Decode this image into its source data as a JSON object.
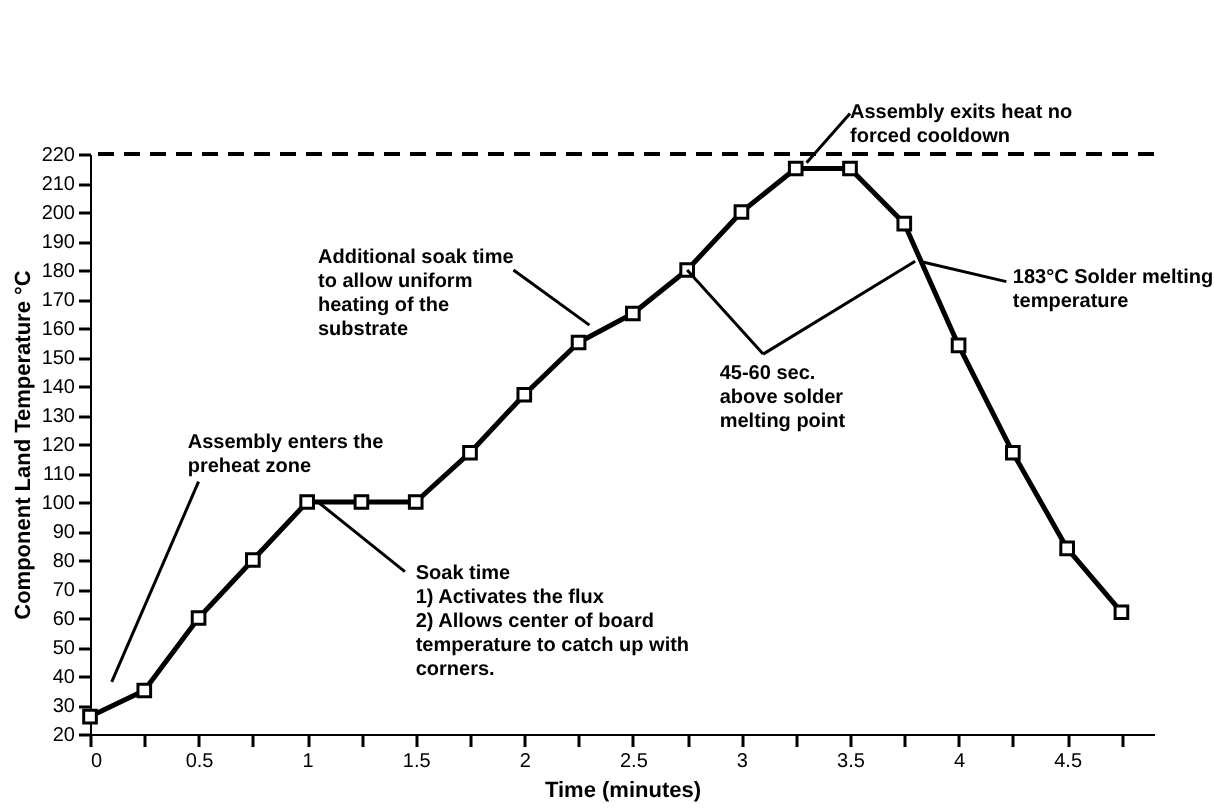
{
  "chart_data": {
    "type": "line",
    "xlabel": "Time (minutes)",
    "ylabel": "Component Land Temperature °C",
    "x": [
      0,
      0.25,
      0.5,
      0.75,
      1,
      1.25,
      1.5,
      1.75,
      2,
      2.25,
      2.5,
      2.75,
      3,
      3.25,
      3.5,
      3.75,
      4,
      4.25,
      4.5,
      4.75
    ],
    "series": [
      {
        "color": "#000000",
        "values": [
          26,
          35,
          60,
          80,
          100,
          100,
          100,
          117,
          137,
          155,
          165,
          180,
          200,
          215,
          215,
          196,
          154,
          117,
          84,
          62
        ]
      }
    ],
    "xlim": [
      0,
      4.9
    ],
    "ylim": [
      20,
      220
    ],
    "xticks": [
      0,
      {
        "value": 0.25,
        "label": null
      },
      0.5,
      {
        "value": 0.75,
        "label": null
      },
      1,
      {
        "value": 1.25,
        "label": null
      },
      1.5,
      {
        "value": 1.75,
        "label": null
      },
      2,
      {
        "value": 2.25,
        "label": null
      },
      2.5,
      {
        "value": 2.75,
        "label": null
      },
      3,
      {
        "value": 3.25,
        "label": null
      },
      3.5,
      {
        "value": 3.75,
        "label": null
      },
      4,
      {
        "value": 4.25,
        "label": null
      },
      4.5,
      {
        "value": 4.75,
        "label": null
      }
    ],
    "yticks": [
      20,
      30,
      40,
      50,
      60,
      70,
      80,
      90,
      100,
      110,
      120,
      130,
      140,
      150,
      160,
      170,
      180,
      190,
      200,
      210,
      220
    ],
    "ref_lines": [
      {
        "axis": "y",
        "value": 220,
        "line_style": "dashed",
        "color": "#000000"
      }
    ],
    "annotations": [
      "Assembly enters the\npreheat zone",
      {
        "text": "Soak time\n1) Activates the flux\n2) Allows center of board\ntemperature to catch up with\ncorners.",
        "x": 1.05,
        "y": 100
      },
      {
        "text": "Additional soak time\nto allow uniform\nheating of the\nsubstrate",
        "x": 2.3,
        "y": 161
      },
      {
        "text": "Assembly exits heat no\nforced cooldown",
        "x": 3.3,
        "y": 217
      },
      {
        "text": "183°C Solder melting\ntemperature",
        "x": 3.82,
        "y": 183
      },
      {
        "text": "45-60 sec.\nabove solder\nmelting point",
        "x": 3.8,
        "y": 183
      }
    ],
    "marker": "square",
    "line_style": "solid",
    "grid": false
  }
}
